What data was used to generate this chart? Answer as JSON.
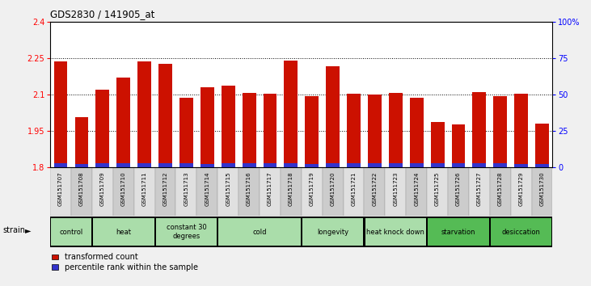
{
  "title": "GDS2830 / 141905_at",
  "samples": [
    "GSM151707",
    "GSM151708",
    "GSM151709",
    "GSM151710",
    "GSM151711",
    "GSM151712",
    "GSM151713",
    "GSM151714",
    "GSM151715",
    "GSM151716",
    "GSM151717",
    "GSM151718",
    "GSM151719",
    "GSM151720",
    "GSM151721",
    "GSM151722",
    "GSM151723",
    "GSM151724",
    "GSM151725",
    "GSM151726",
    "GSM151727",
    "GSM151728",
    "GSM151729",
    "GSM151730"
  ],
  "red_values": [
    2.235,
    2.005,
    2.12,
    2.17,
    2.235,
    2.225,
    2.085,
    2.13,
    2.135,
    2.105,
    2.102,
    2.24,
    2.093,
    2.215,
    2.104,
    2.101,
    2.105,
    2.087,
    1.985,
    1.978,
    2.11,
    2.093,
    2.104,
    1.981
  ],
  "blue_values": [
    3,
    2,
    3,
    3,
    3,
    3,
    3,
    2,
    3,
    3,
    3,
    3,
    2,
    3,
    3,
    3,
    3,
    3,
    3,
    3,
    3,
    3,
    2,
    2
  ],
  "groups": [
    {
      "label": "control",
      "start": 0,
      "end": 1,
      "color": "#aaddaa"
    },
    {
      "label": "heat",
      "start": 2,
      "end": 4,
      "color": "#aaddaa"
    },
    {
      "label": "constant 30\ndegrees",
      "start": 5,
      "end": 7,
      "color": "#aaddaa"
    },
    {
      "label": "cold",
      "start": 8,
      "end": 11,
      "color": "#aaddaa"
    },
    {
      "label": "longevity",
      "start": 12,
      "end": 14,
      "color": "#aaddaa"
    },
    {
      "label": "heat knock down",
      "start": 15,
      "end": 17,
      "color": "#aaddaa"
    },
    {
      "label": "starvation",
      "start": 18,
      "end": 20,
      "color": "#55bb55"
    },
    {
      "label": "desiccation",
      "start": 21,
      "end": 23,
      "color": "#55bb55"
    }
  ],
  "ylim_left": [
    1.8,
    2.4
  ],
  "ylim_right": [
    0,
    100
  ],
  "yticks_left": [
    1.8,
    1.95,
    2.1,
    2.25,
    2.4
  ],
  "yticks_right": [
    0,
    25,
    50,
    75,
    100
  ],
  "ytick_labels_right": [
    "0",
    "25",
    "50",
    "75",
    "100%"
  ],
  "bar_color_red": "#cc1100",
  "bar_color_blue": "#3333cc",
  "bg_color": "#f0f0f0",
  "plot_bg": "#ffffff",
  "bar_width": 0.65,
  "legend_red_label": "transformed count",
  "legend_blue_label": "percentile rank within the sample"
}
